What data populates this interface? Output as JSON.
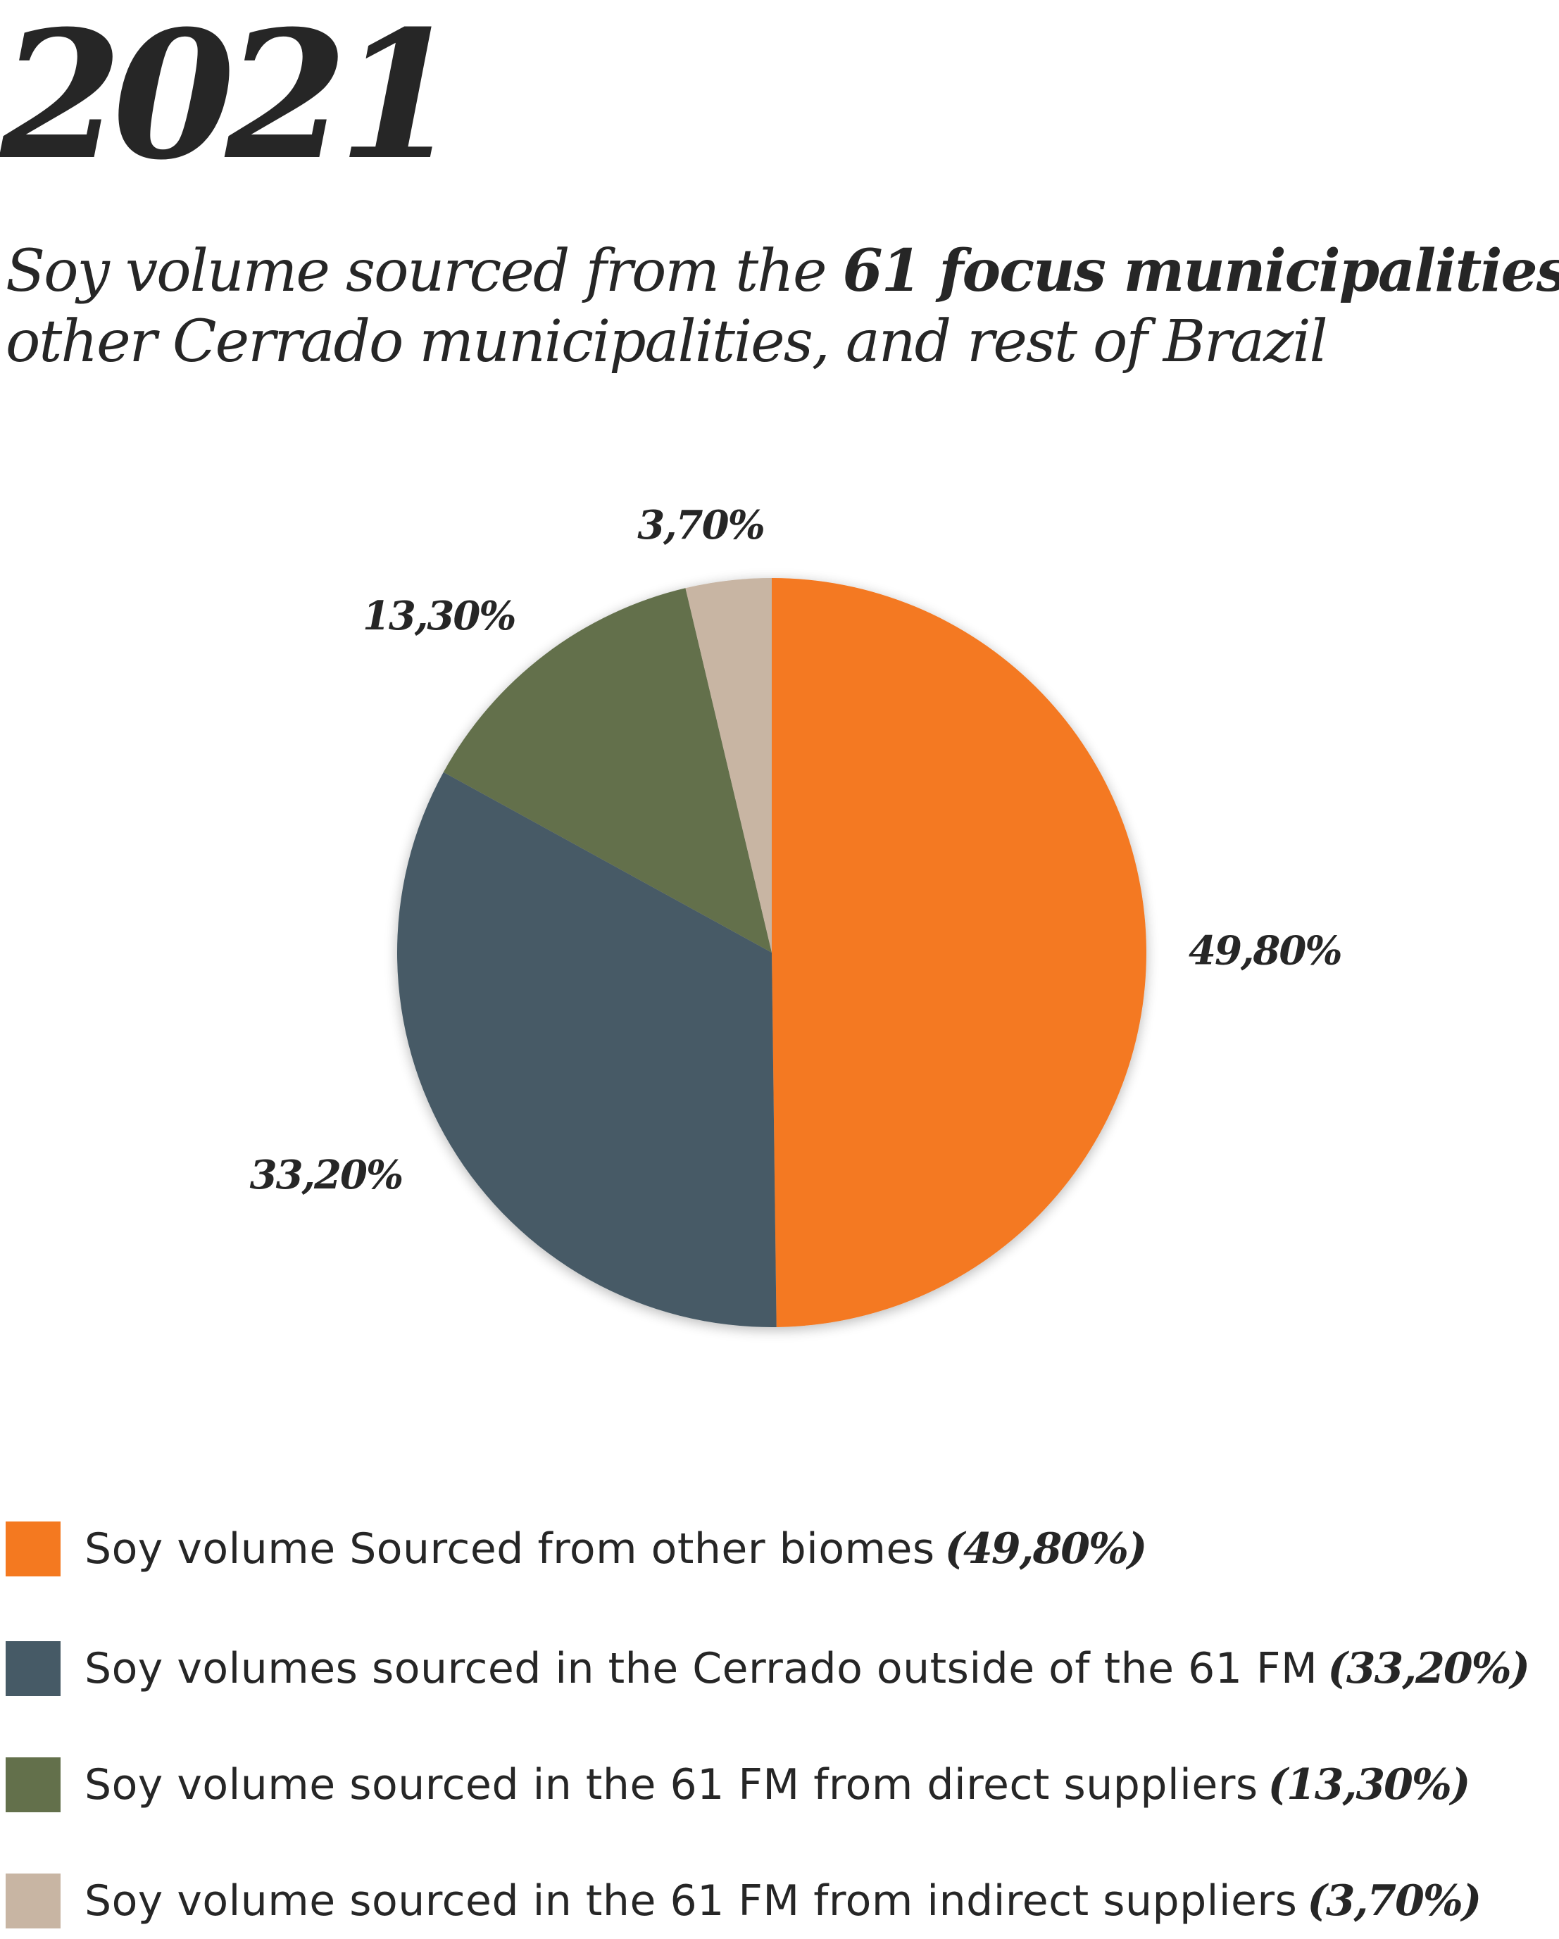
{
  "header": {
    "year": "2021",
    "subtitle_line1_normal": "Soy volume sourced from the ",
    "subtitle_line1_bold": "61 focus municipalities,",
    "subtitle_line2": "other Cerrado municipalities, and rest of Brazil"
  },
  "chart_data": {
    "type": "pie",
    "title": "2021",
    "subtitle": "Soy volume sourced from the 61 focus municipalities, other Cerrado municipalities, and rest of Brazil",
    "legend_position": "bottom",
    "start_angle": "12 o'clock, clockwise",
    "slices": [
      {
        "label": "Soy volume Sourced from other biomes",
        "value": 49.8,
        "value_label": "49,80%",
        "legend_pct": "(49,80%)",
        "color": "#F47920"
      },
      {
        "label": "Soy volumes sourced in the Cerrado outside of the 61 FM",
        "value": 33.2,
        "value_label": "33,20%",
        "legend_pct": "(33,20%)",
        "color": "#465A66"
      },
      {
        "label": "Soy volume sourced in the 61 FM from direct suppliers",
        "value": 13.3,
        "value_label": "13,30%",
        "legend_pct": "(13,30%)",
        "color": "#63704B"
      },
      {
        "label": "Soy volume sourced in the 61 FM from indirect suppliers",
        "value": 3.7,
        "value_label": "3,70%",
        "legend_pct": "(3,70%)",
        "color": "#C8B5A3"
      }
    ]
  }
}
